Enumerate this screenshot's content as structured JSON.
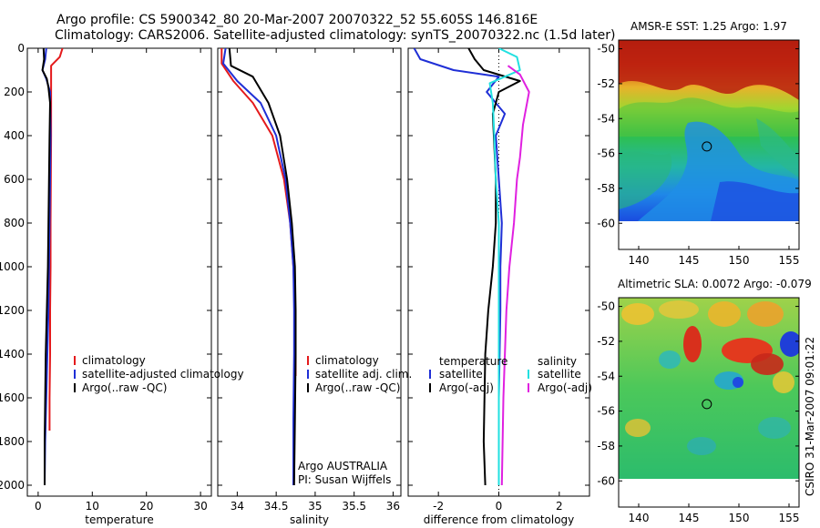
{
  "title": {
    "line1": "Argo profile: CS 5900342_80 20-Mar-2007 20070322_52 55.605S 146.816E",
    "line2": "Climatology: CARS2006. Satellite-adjusted climatology: synTS_20070322.nc (1.5d later)"
  },
  "side_label": "CSIRO 31-Mar-2007 09:01:22",
  "argo_note": [
    "Argo AUSTRALIA",
    "PI: Susan Wijffels"
  ],
  "colors": {
    "climatology": "#e41a1c",
    "satellite": "#1f2fd6",
    "argo": "#000000",
    "cyan": "#22e0e0",
    "magenta": "#e020e0"
  },
  "chart_data": [
    {
      "id": "temperature",
      "type": "line",
      "xlabel": "temperature",
      "ylabel": "",
      "xlim": [
        -2,
        32
      ],
      "ylim": [
        2050,
        0
      ],
      "xticks": [
        0,
        10,
        20,
        30
      ],
      "yticks": [
        0,
        200,
        400,
        600,
        800,
        1000,
        1200,
        1400,
        1600,
        1800,
        2000
      ],
      "legend": {
        "position": "lower-right",
        "entries": [
          {
            "label": "climatology",
            "color": "climatology"
          },
          {
            "label": "satellite-adjusted climatology",
            "color": "satellite"
          },
          {
            "label": "Argo(..raw -QC)",
            "color": "argo"
          }
        ]
      },
      "series": [
        {
          "name": "climatology",
          "color": "climatology",
          "x": [
            4.5,
            4.0,
            2.4,
            2.4,
            2.4,
            2.4,
            2.35,
            2.3,
            2.3,
            2.2,
            2.2,
            2.1,
            2.1
          ],
          "y": [
            0,
            40,
            80,
            120,
            200,
            400,
            600,
            800,
            1000,
            1200,
            1400,
            1600,
            1750
          ]
        },
        {
          "name": "satellite-adjusted climatology",
          "color": "satellite",
          "x": [
            1.5,
            1.3,
            0.8,
            1.5,
            2.2,
            2.3,
            2.2,
            2.1,
            2.0,
            1.9,
            1.7,
            1.5,
            1.3,
            1.2
          ],
          "y": [
            0,
            50,
            100,
            140,
            200,
            400,
            600,
            800,
            1000,
            1200,
            1400,
            1600,
            1800,
            2000
          ]
        },
        {
          "name": "Argo(..raw -QC)",
          "color": "argo",
          "x": [
            1.0,
            1.1,
            0.8,
            1.6,
            1.9,
            2.2,
            2.1,
            2.0,
            1.9,
            1.8,
            1.6,
            1.4,
            1.3,
            1.2,
            1.2
          ],
          "y": [
            0,
            50,
            100,
            140,
            180,
            250,
            400,
            600,
            800,
            1000,
            1200,
            1400,
            1600,
            1800,
            2000
          ]
        }
      ]
    },
    {
      "id": "salinity",
      "type": "line",
      "xlabel": "salinity",
      "ylabel": "",
      "xlim": [
        33.75,
        36.1
      ],
      "ylim": [
        2050,
        0
      ],
      "xticks": [
        34,
        34.5,
        35,
        35.5,
        36
      ],
      "yticks": [
        0,
        200,
        400,
        600,
        800,
        1000,
        1200,
        1400,
        1600,
        1800,
        2000
      ],
      "legend": {
        "position": "lower-right",
        "entries": [
          {
            "label": "climatology",
            "color": "climatology"
          },
          {
            "label": "satellite adj. clim.",
            "color": "satellite"
          },
          {
            "label": "Argo(..raw -QC)",
            "color": "argo"
          }
        ]
      },
      "series": [
        {
          "name": "climatology",
          "color": "climatology",
          "x": [
            33.8,
            33.8,
            33.95,
            34.2,
            34.45,
            34.6,
            34.68,
            34.72,
            34.74,
            34.75,
            34.75
          ],
          "y": [
            0,
            70,
            150,
            250,
            400,
            600,
            800,
            1000,
            1200,
            1400,
            1500
          ]
        },
        {
          "name": "satellite adj. clim.",
          "color": "satellite",
          "x": [
            33.85,
            33.82,
            34.0,
            34.3,
            34.5,
            34.62,
            34.68,
            34.72,
            34.73,
            34.73,
            34.72,
            34.72
          ],
          "y": [
            0,
            70,
            150,
            250,
            400,
            600,
            800,
            1000,
            1200,
            1400,
            1700,
            2000
          ]
        },
        {
          "name": "Argo(..raw -QC)",
          "color": "argo",
          "x": [
            33.9,
            33.92,
            34.2,
            34.4,
            34.55,
            34.64,
            34.7,
            34.74,
            34.75,
            34.75,
            34.74,
            34.73
          ],
          "y": [
            0,
            80,
            130,
            250,
            400,
            600,
            800,
            1000,
            1200,
            1400,
            1700,
            2000
          ]
        }
      ]
    },
    {
      "id": "difference",
      "type": "line",
      "xlabel": "difference from climatology",
      "ylabel": "",
      "xlim": [
        -3,
        3
      ],
      "ylim": [
        2050,
        0
      ],
      "xticks": [
        -2,
        0,
        2
      ],
      "yticks": [
        0,
        200,
        400,
        600,
        800,
        1000,
        1200,
        1400,
        1600,
        1800,
        2000
      ],
      "legend": {
        "position": "lower-right",
        "columns": [
          {
            "header": "temperature",
            "entries": [
              {
                "label": "satellite",
                "color": "satellite"
              },
              {
                "label": "Argo(-adj)",
                "color": "argo"
              }
            ]
          },
          {
            "header": "salinity",
            "entries": [
              {
                "label": "satellite",
                "color": "cyan"
              },
              {
                "label": "Argo(-adj)",
                "color": "magenta"
              }
            ]
          }
        ]
      },
      "series": [
        {
          "name": "temperature satellite",
          "color": "satellite",
          "x": [
            -2.8,
            -2.6,
            -1.5,
            0.0,
            -0.4,
            0.2,
            -0.1,
            0.0,
            0.1,
            0.05,
            0.05,
            0.0,
            0.0
          ],
          "y": [
            0,
            50,
            100,
            130,
            200,
            300,
            400,
            600,
            800,
            1000,
            1200,
            1600,
            2000
          ]
        },
        {
          "name": "temperature Argo(-adj)",
          "color": "argo",
          "x": [
            -1.0,
            -0.8,
            -0.5,
            0.7,
            0.0,
            -0.2,
            -0.1,
            -0.1,
            -0.2,
            -0.35,
            -0.45,
            -0.5,
            -0.45
          ],
          "y": [
            0,
            50,
            100,
            150,
            200,
            300,
            600,
            800,
            1000,
            1200,
            1400,
            1800,
            2000
          ]
        },
        {
          "name": "salinity satellite",
          "color": "cyan",
          "x": [
            0.0,
            0.6,
            0.7,
            -0.3,
            -0.2,
            -0.15,
            -0.1,
            0.0,
            0.0,
            0.0,
            0.0
          ],
          "y": [
            0,
            40,
            100,
            160,
            250,
            400,
            600,
            800,
            1200,
            1600,
            2000
          ]
        },
        {
          "name": "salinity Argo(-adj)",
          "color": "magenta",
          "x": [
            0.3,
            0.7,
            1.0,
            0.8,
            0.7,
            0.6,
            0.5,
            0.35,
            0.25,
            0.15,
            0.1
          ],
          "y": [
            80,
            120,
            200,
            350,
            500,
            600,
            800,
            1000,
            1200,
            1600,
            2000
          ]
        }
      ]
    },
    {
      "id": "sst-map",
      "type": "heatmap",
      "title": "AMSR-E SST: 1.25 Argo: 1.97",
      "xlim": [
        138,
        156
      ],
      "ylim": [
        -61.5,
        -49.5
      ],
      "xticks": [
        140,
        145,
        150,
        155
      ],
      "yticks": [
        -50,
        -52,
        -54,
        -56,
        -58,
        -60
      ],
      "data_extent_lat": [
        -60,
        -49.5
      ],
      "argo_position": {
        "lon": 146.8,
        "lat": -55.6
      }
    },
    {
      "id": "sla-map",
      "type": "heatmap",
      "title": "Altimetric SLA: 0.0072 Argo: -0.079",
      "xlim": [
        138,
        156
      ],
      "ylim": [
        -61.5,
        -49.5
      ],
      "xticks": [
        140,
        145,
        150,
        155
      ],
      "yticks": [
        -50,
        -52,
        -54,
        -56,
        -58,
        -60
      ],
      "data_extent_lat": [
        -60,
        -49.5
      ],
      "argo_position": {
        "lon": 146.8,
        "lat": -55.6
      }
    }
  ]
}
